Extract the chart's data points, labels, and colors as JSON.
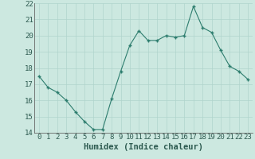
{
  "x": [
    0,
    1,
    2,
    3,
    4,
    5,
    6,
    7,
    8,
    9,
    10,
    11,
    12,
    13,
    14,
    15,
    16,
    17,
    18,
    19,
    20,
    21,
    22,
    23
  ],
  "y": [
    17.5,
    16.8,
    16.5,
    16.0,
    15.3,
    14.7,
    14.2,
    14.2,
    16.1,
    17.8,
    19.4,
    20.3,
    19.7,
    19.7,
    20.0,
    19.9,
    20.0,
    21.8,
    20.5,
    20.2,
    19.1,
    18.1,
    17.8,
    17.3
  ],
  "line_color": "#2d7d6e",
  "marker_color": "#2d7d6e",
  "bg_color": "#cce8e0",
  "grid_color": "#b0d4cc",
  "xlabel": "Humidex (Indice chaleur)",
  "xlabel_fontsize": 7.5,
  "tick_fontsize": 6.5,
  "ylim": [
    14,
    22
  ],
  "yticks": [
    14,
    15,
    16,
    17,
    18,
    19,
    20,
    21,
    22
  ],
  "xlim": [
    -0.5,
    23.5
  ],
  "xticks": [
    0,
    1,
    2,
    3,
    4,
    5,
    6,
    7,
    8,
    9,
    10,
    11,
    12,
    13,
    14,
    15,
    16,
    17,
    18,
    19,
    20,
    21,
    22,
    23
  ]
}
